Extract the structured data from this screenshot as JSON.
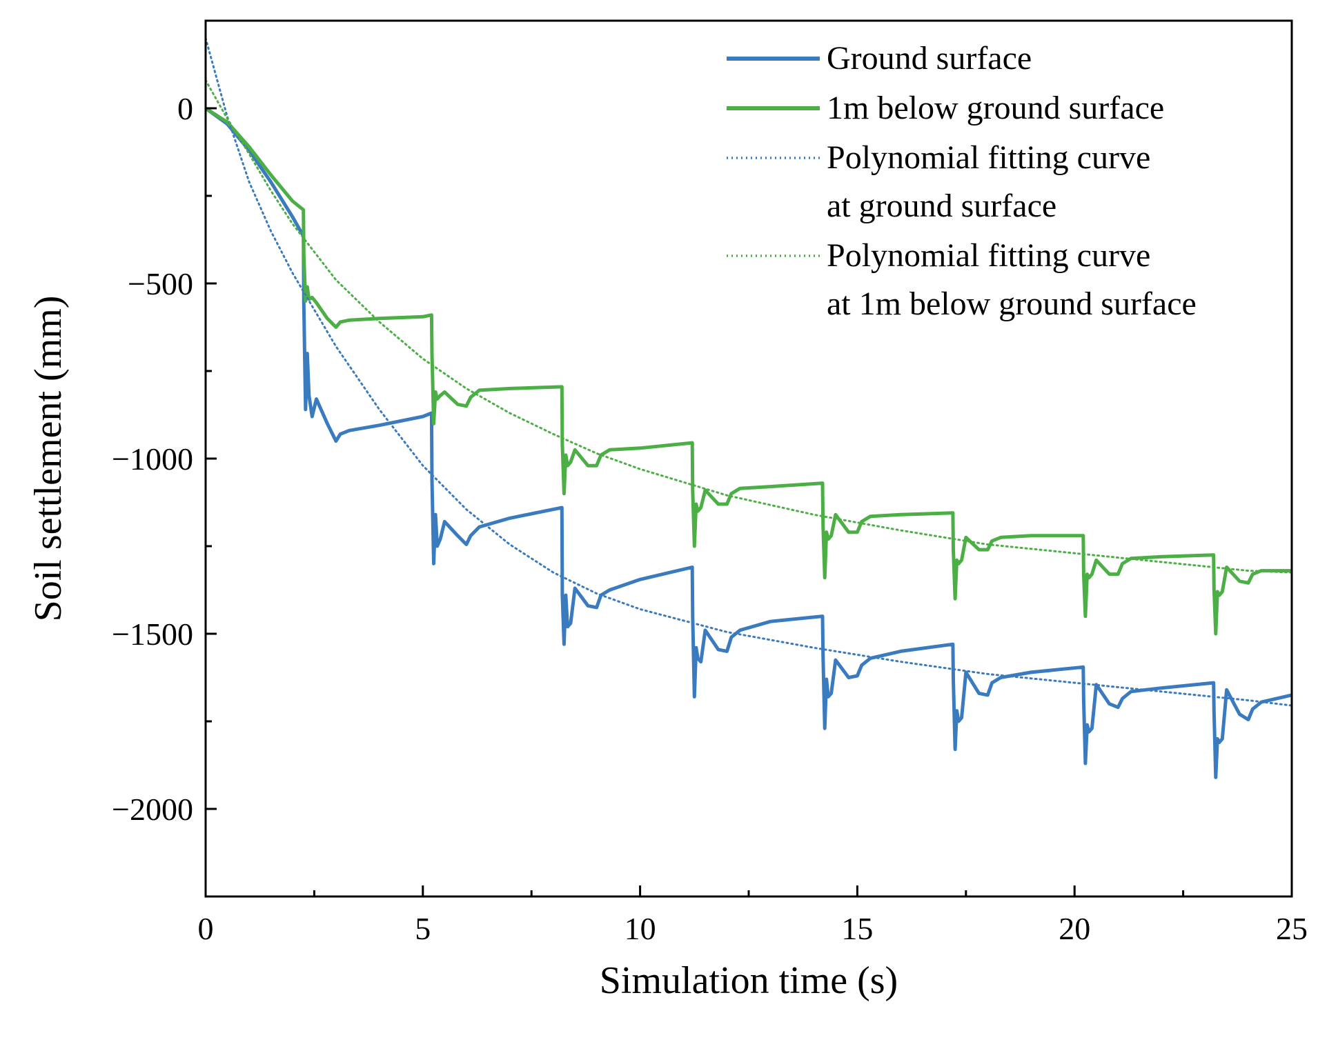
{
  "chart_data": {
    "type": "line",
    "xlabel": "Simulation time (s)",
    "ylabel": "Soil settlement (mm)",
    "xlim": [
      0,
      25
    ],
    "ylim": [
      -2250,
      250
    ],
    "xticks": [
      0,
      5,
      10,
      15,
      20,
      25
    ],
    "xminor": [
      2.5,
      7.5,
      12.5,
      17.5,
      22.5
    ],
    "yticks": [
      0,
      -500,
      -1000,
      -1500,
      -2000
    ],
    "yminor": [
      -250,
      -750,
      -1250,
      -1750,
      -2250
    ],
    "grid": false,
    "legend_position": "top-right",
    "legend": [
      {
        "text": "Ground surface",
        "series": "ground"
      },
      {
        "text": "1m below ground surface",
        "series": "below1m"
      },
      {
        "text": "Polynomial fitting curve",
        "text2": "at ground surface",
        "series": "fit_ground"
      },
      {
        "text": "Polynomial fitting curve",
        "text2": "at 1m below ground surface",
        "series": "fit_below1m"
      }
    ],
    "series": [
      {
        "id": "ground",
        "name": "Ground surface",
        "color": "#3a7bbf",
        "style": "solid",
        "x": [
          0,
          0.5,
          1.0,
          1.5,
          2.0,
          2.25,
          2.26,
          2.3,
          2.34,
          2.38,
          2.45,
          2.55,
          2.8,
          3.0,
          3.1,
          3.3,
          4.0,
          5.0,
          5.2,
          5.21,
          5.25,
          5.29,
          5.33,
          5.4,
          5.5,
          5.8,
          6.0,
          6.1,
          6.3,
          7.0,
          8.2,
          8.21,
          8.25,
          8.29,
          8.33,
          8.4,
          8.5,
          8.8,
          9.0,
          9.1,
          9.3,
          10.0,
          11.2,
          11.21,
          11.25,
          11.29,
          11.33,
          11.4,
          11.5,
          11.8,
          12.0,
          12.1,
          12.3,
          13.0,
          14.2,
          14.21,
          14.25,
          14.29,
          14.33,
          14.4,
          14.5,
          14.8,
          15.0,
          15.1,
          15.3,
          16.0,
          17.2,
          17.21,
          17.25,
          17.29,
          17.33,
          17.4,
          17.5,
          17.8,
          18.0,
          18.1,
          18.3,
          19.0,
          20.2,
          20.21,
          20.25,
          20.29,
          20.33,
          20.4,
          20.5,
          20.8,
          21.0,
          21.1,
          21.3,
          22.0,
          23.2,
          23.21,
          23.25,
          23.29,
          23.33,
          23.4,
          23.5,
          23.8,
          24.0,
          24.1,
          24.3,
          25.0
        ],
        "y": [
          0,
          -45,
          -120,
          -210,
          -310,
          -365,
          -560,
          -860,
          -700,
          -820,
          -880,
          -830,
          -900,
          -950,
          -930,
          -920,
          -905,
          -880,
          -870,
          -1060,
          -1300,
          -1160,
          -1250,
          -1230,
          -1180,
          -1220,
          -1245,
          -1220,
          -1195,
          -1170,
          -1140,
          -1390,
          -1530,
          -1390,
          -1480,
          -1470,
          -1370,
          -1420,
          -1425,
          -1390,
          -1375,
          -1345,
          -1310,
          -1450,
          -1680,
          -1540,
          -1570,
          -1580,
          -1490,
          -1545,
          -1550,
          -1510,
          -1490,
          -1465,
          -1450,
          -1560,
          -1770,
          -1630,
          -1680,
          -1670,
          -1575,
          -1625,
          -1620,
          -1590,
          -1570,
          -1550,
          -1530,
          -1630,
          -1830,
          -1720,
          -1750,
          -1740,
          -1610,
          -1670,
          -1675,
          -1640,
          -1625,
          -1610,
          -1595,
          -1690,
          -1870,
          -1760,
          -1780,
          -1770,
          -1645,
          -1700,
          -1710,
          -1685,
          -1665,
          -1655,
          -1640,
          -1720,
          -1910,
          -1800,
          -1810,
          -1800,
          -1660,
          -1730,
          -1745,
          -1715,
          -1695,
          -1675
        ]
      },
      {
        "id": "below1m",
        "name": "1m below ground surface",
        "color": "#4caf45",
        "style": "solid",
        "x": [
          0,
          0.5,
          1.0,
          1.5,
          2.0,
          2.25,
          2.26,
          2.3,
          2.34,
          2.38,
          2.45,
          2.55,
          2.8,
          3.0,
          3.1,
          3.3,
          4.0,
          5.0,
          5.2,
          5.21,
          5.25,
          5.29,
          5.33,
          5.4,
          5.5,
          5.8,
          6.0,
          6.1,
          6.3,
          7.0,
          8.2,
          8.21,
          8.25,
          8.29,
          8.33,
          8.4,
          8.5,
          8.8,
          9.0,
          9.1,
          9.3,
          10.0,
          11.2,
          11.21,
          11.25,
          11.29,
          11.33,
          11.4,
          11.5,
          11.8,
          12.0,
          12.1,
          12.3,
          13.0,
          14.2,
          14.21,
          14.25,
          14.29,
          14.33,
          14.4,
          14.5,
          14.8,
          15.0,
          15.1,
          15.3,
          16.0,
          17.2,
          17.21,
          17.25,
          17.29,
          17.33,
          17.4,
          17.5,
          17.8,
          18.0,
          18.1,
          18.3,
          19.0,
          20.2,
          20.21,
          20.25,
          20.29,
          20.33,
          20.4,
          20.5,
          20.8,
          21.0,
          21.1,
          21.3,
          22.0,
          23.2,
          23.21,
          23.25,
          23.29,
          23.33,
          23.4,
          23.5,
          23.8,
          24.0,
          24.1,
          24.3,
          25.0
        ],
        "y": [
          0,
          -40,
          -110,
          -190,
          -265,
          -290,
          -420,
          -550,
          -510,
          -545,
          -540,
          -555,
          -600,
          -625,
          -610,
          -605,
          -600,
          -595,
          -590,
          -700,
          -900,
          -810,
          -830,
          -820,
          -810,
          -845,
          -850,
          -825,
          -805,
          -800,
          -795,
          -960,
          -1100,
          -990,
          -1020,
          -1010,
          -975,
          -1020,
          -1020,
          -990,
          -975,
          -970,
          -955,
          -1090,
          -1250,
          -1130,
          -1150,
          -1140,
          -1090,
          -1130,
          -1130,
          -1100,
          -1085,
          -1080,
          -1070,
          -1190,
          -1340,
          -1210,
          -1230,
          -1220,
          -1160,
          -1210,
          -1210,
          -1180,
          -1165,
          -1160,
          -1155,
          -1260,
          -1400,
          -1290,
          -1300,
          -1290,
          -1225,
          -1260,
          -1260,
          -1235,
          -1225,
          -1220,
          -1220,
          -1330,
          -1450,
          -1330,
          -1340,
          -1330,
          -1290,
          -1330,
          -1330,
          -1300,
          -1285,
          -1280,
          -1275,
          -1370,
          -1500,
          -1380,
          -1390,
          -1380,
          -1310,
          -1350,
          -1355,
          -1330,
          -1320,
          -1320
        ]
      },
      {
        "id": "fit_ground",
        "name": "Polynomial fitting curve at ground surface",
        "color": "#3a7bbf",
        "style": "dotted",
        "x": [
          0,
          0.5,
          1,
          1.5,
          2,
          3,
          4,
          5,
          6,
          7,
          8,
          9,
          10,
          12,
          14,
          16,
          18,
          20,
          22,
          24,
          25
        ],
        "y": [
          200,
          -25,
          -210,
          -350,
          -470,
          -680,
          -860,
          -1020,
          -1145,
          -1245,
          -1325,
          -1385,
          -1430,
          -1495,
          -1540,
          -1580,
          -1615,
          -1640,
          -1665,
          -1690,
          -1705
        ]
      },
      {
        "id": "fit_below1m",
        "name": "Polynomial fitting curve at 1m below ground surface",
        "color": "#4caf45",
        "style": "dotted",
        "x": [
          0,
          0.5,
          1,
          1.5,
          2,
          3,
          4,
          5,
          6,
          7,
          8,
          9,
          10,
          12,
          14,
          16,
          18,
          20,
          22,
          24,
          25
        ],
        "y": [
          80,
          -30,
          -130,
          -235,
          -330,
          -490,
          -610,
          -715,
          -800,
          -870,
          -930,
          -985,
          -1030,
          -1105,
          -1160,
          -1205,
          -1245,
          -1270,
          -1295,
          -1320,
          -1325
        ]
      }
    ]
  }
}
